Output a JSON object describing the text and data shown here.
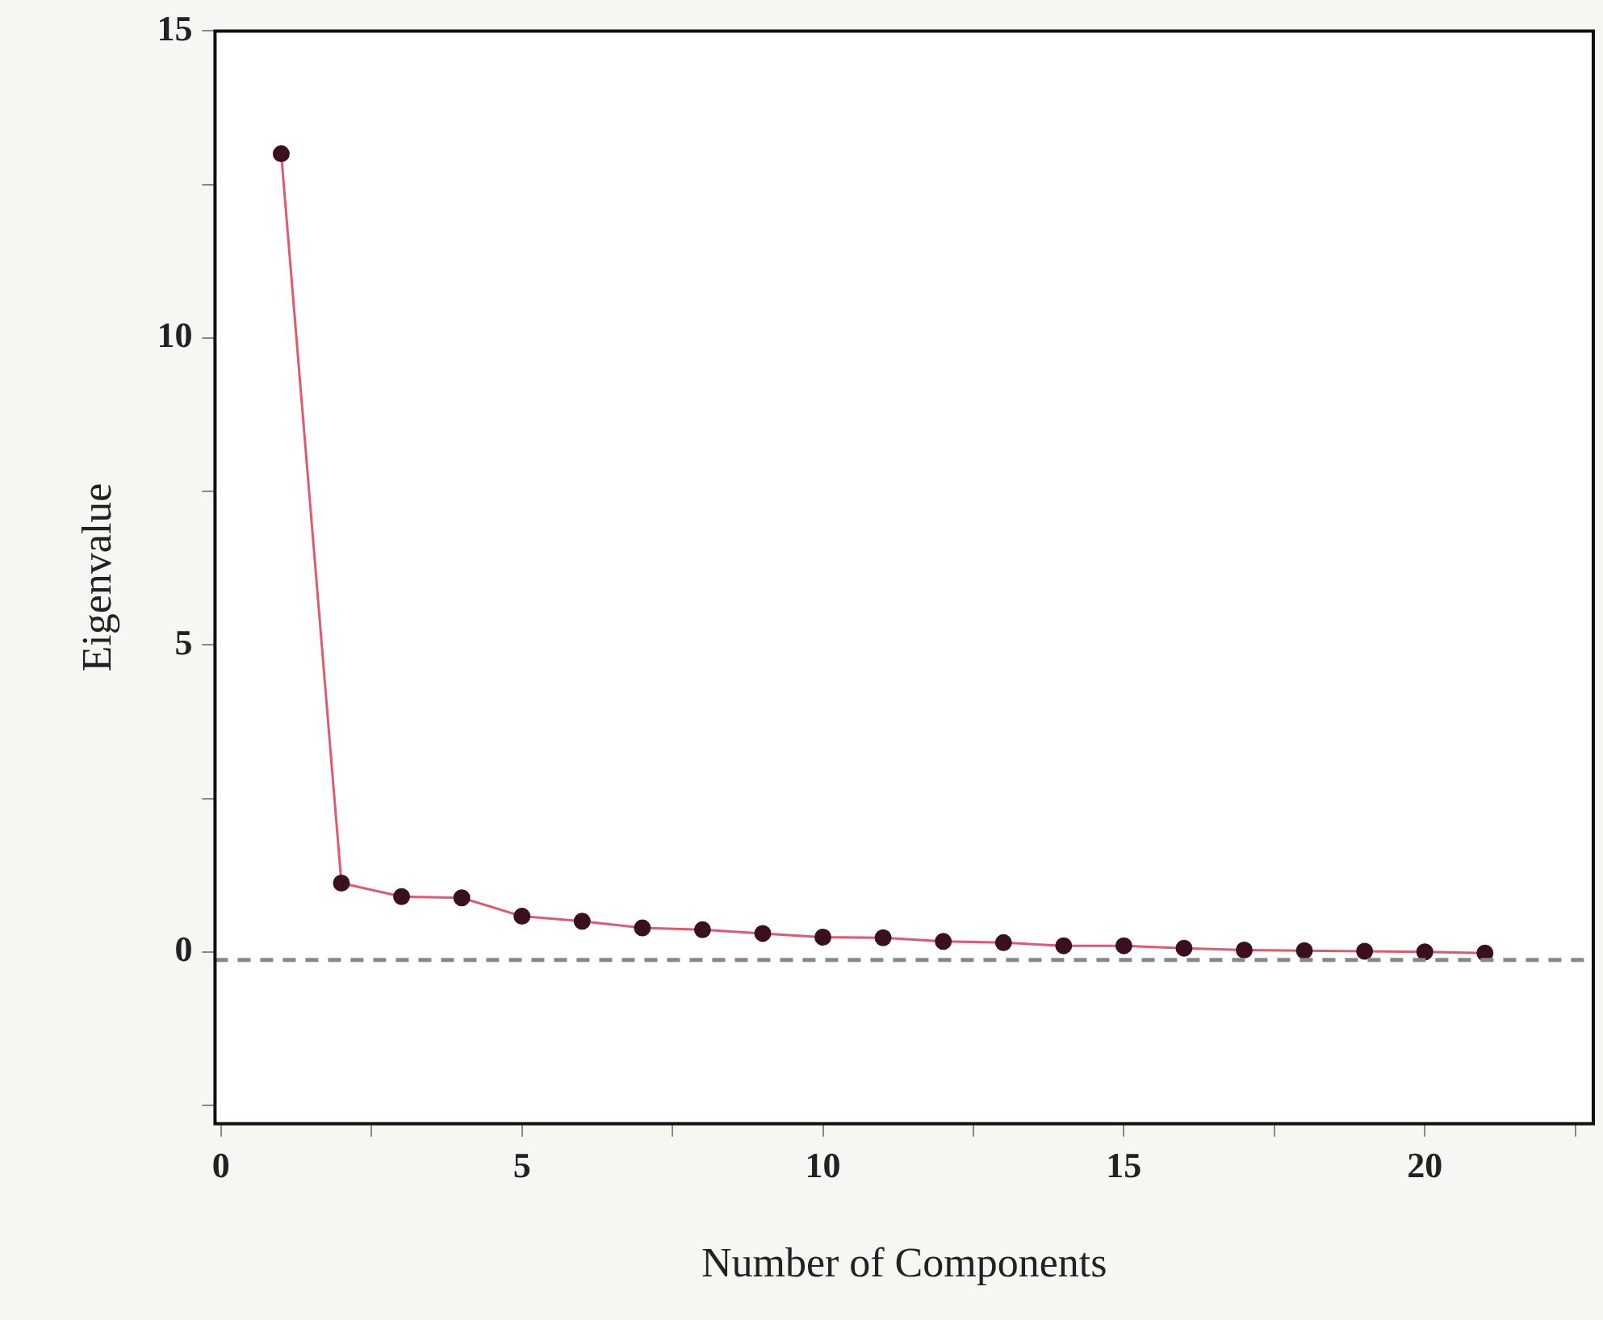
{
  "chart_data": {
    "type": "line",
    "xlabel": "Number of Components",
    "ylabel": "Eigenvalue",
    "x": [
      1,
      2,
      3,
      4,
      5,
      6,
      7,
      8,
      9,
      10,
      11,
      12,
      13,
      14,
      15,
      16,
      17,
      18,
      19,
      20,
      21
    ],
    "series": [
      {
        "color": "#e05a6e",
        "values": [
          13.0,
          1.12,
          0.9,
          0.88,
          0.58,
          0.5,
          0.39,
          0.36,
          0.3,
          0.24,
          0.23,
          0.17,
          0.15,
          0.1,
          0.1,
          0.06,
          0.03,
          0.02,
          0.01,
          0.0,
          -0.02
        ]
      }
    ],
    "xlim": [
      -0.1,
      22.8
    ],
    "xticks": [
      0,
      {
        "value": 2.5,
        "label": null
      },
      5,
      {
        "value": 7.5,
        "label": null
      },
      10,
      {
        "value": 12.5,
        "label": null
      },
      15,
      {
        "value": 17.5,
        "label": null
      },
      20,
      {
        "value": 22.5,
        "label": null
      }
    ],
    "ylim": [
      -2.8,
      15
    ],
    "yticks": [
      {
        "value": -2.5,
        "label": null
      },
      0,
      {
        "value": 2.5,
        "label": null
      },
      5,
      {
        "value": 7.5,
        "label": null
      },
      10,
      {
        "value": 12.5,
        "label": null
      },
      15
    ],
    "ref_lines": [
      {
        "axis": "y",
        "value": -0.13,
        "color": "#888888",
        "line_style": "dashed"
      }
    ],
    "grid": false,
    "legend": false,
    "marker": "circle",
    "line_style": "solid"
  }
}
